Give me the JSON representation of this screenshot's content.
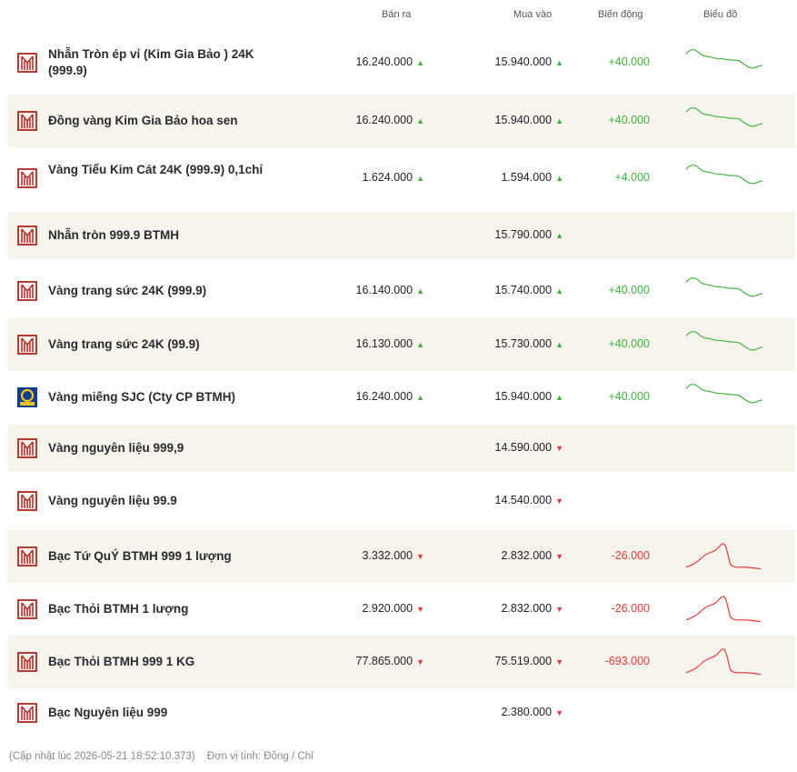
{
  "headers": {
    "sell": "Bán ra",
    "buy": "Mua vào",
    "change": "Biến động",
    "chart": "Biểu đồ"
  },
  "colors": {
    "up": "#3db33d",
    "down": "#e53935",
    "logo": "#b3261e",
    "alt_row": "#f7f3ed"
  },
  "rows": [
    {
      "name": "Nhẫn Tròn ép vỉ (Kim Gia Bảo ) 24K (999.9)",
      "logo": "btmh-logo-icon",
      "sell": "16.240.000",
      "sell_dir": "up",
      "buy": "15.940.000",
      "buy_dir": "up",
      "change": "+40.000",
      "trend": "up",
      "alt": false
    },
    {
      "name": "Đồng vàng Kim Gia Bảo hoa sen",
      "logo": "btmh-logo-icon",
      "sell": "16.240.000",
      "sell_dir": "up",
      "buy": "15.940.000",
      "buy_dir": "up",
      "change": "+40.000",
      "trend": "up",
      "alt": true
    },
    {
      "name": "Vàng Tiểu Kim Cát 24K (999.9) 0,1chỉ",
      "logo": "btmh-logo-icon",
      "sell": "1.624.000",
      "sell_dir": "up",
      "buy": "1.594.000",
      "buy_dir": "up",
      "change": "+4.000",
      "trend": "up",
      "alt": false
    },
    {
      "name": "Nhẫn tròn 999.9 BTMH",
      "logo": "btmh-logo-icon",
      "sell": "",
      "sell_dir": "",
      "buy": "15.790.000",
      "buy_dir": "up",
      "change": "",
      "trend": "",
      "alt": true
    },
    {
      "name": "Vàng trang sức 24K (999.9)",
      "logo": "btmh-logo-icon",
      "sell": "16.140.000",
      "sell_dir": "up",
      "buy": "15.740.000",
      "buy_dir": "up",
      "change": "+40.000",
      "trend": "up",
      "alt": false
    },
    {
      "name": "Vàng trang sức 24K (99.9)",
      "logo": "btmh-logo-icon",
      "sell": "16.130.000",
      "sell_dir": "up",
      "buy": "15.730.000",
      "buy_dir": "up",
      "change": "+40.000",
      "trend": "up",
      "alt": true
    },
    {
      "name": "Vàng miếng SJC (Cty CP BTMH)",
      "logo": "sjc-logo-icon",
      "sell": "16.240.000",
      "sell_dir": "up",
      "buy": "15.940.000",
      "buy_dir": "up",
      "change": "+40.000",
      "trend": "up",
      "alt": false
    },
    {
      "name": "Vàng nguyên liệu 999,9",
      "logo": "btmh-logo-icon",
      "sell": "",
      "sell_dir": "",
      "buy": "14.590.000",
      "buy_dir": "down",
      "change": "",
      "trend": "",
      "alt": true
    },
    {
      "name": "Vàng nguyên liệu 99.9",
      "logo": "btmh-logo-icon",
      "sell": "",
      "sell_dir": "",
      "buy": "14.540.000",
      "buy_dir": "down",
      "change": "",
      "trend": "",
      "alt": false
    },
    {
      "name": "Bạc Tứ QuÝ BTMH 999 1 lượng",
      "logo": "btmh-logo-icon",
      "sell": "3.332.000",
      "sell_dir": "down",
      "buy": "2.832.000",
      "buy_dir": "down",
      "change": "-26.000",
      "trend": "down",
      "alt": true
    },
    {
      "name": "Bạc Thỏi BTMH 1 lượng",
      "logo": "btmh-logo-icon",
      "sell": "2.920.000",
      "sell_dir": "down",
      "buy": "2.832.000",
      "buy_dir": "down",
      "change": "-26.000",
      "trend": "down",
      "alt": false
    },
    {
      "name": "Bạc Thỏi BTMH 999 1 KG",
      "logo": "btmh-logo-icon",
      "sell": "77.865.000",
      "sell_dir": "down",
      "buy": "75.519.000",
      "buy_dir": "down",
      "change": "-693.000",
      "trend": "down",
      "alt": true
    },
    {
      "name": "Bạc Nguyên liệu 999",
      "logo": "btmh-logo-icon",
      "sell": "",
      "sell_dir": "",
      "buy": "2.380.000",
      "buy_dir": "down",
      "change": "",
      "trend": "",
      "alt": false
    }
  ],
  "footer": {
    "updated": "(Cập nhật lúc 2026-05-21 18:52:10.373)",
    "unit": "Đơn vị tính: Đồng / Chỉ"
  }
}
